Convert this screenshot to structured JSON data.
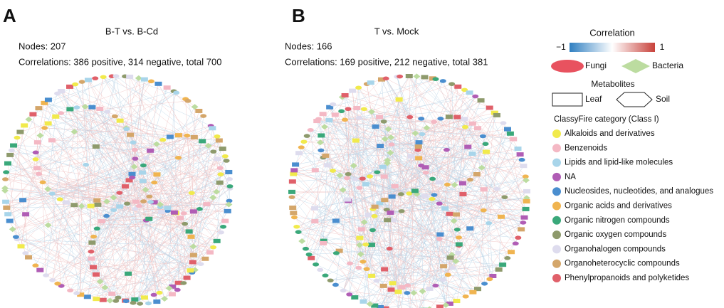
{
  "panels": [
    {
      "label": "A",
      "title": "B-T vs. B-Cd",
      "nodes": "Nodes: 207",
      "correlations": "Correlations: 386 positive, 314 negative, total 700"
    },
    {
      "label": "B",
      "title": "T vs. Mock",
      "nodes": "Nodes: 166",
      "correlations": "Correlations: 169 positive, 212 negative, total 381"
    }
  ],
  "legend": {
    "correlation": {
      "title": "Correlation",
      "min": "−1",
      "max": "1",
      "colors": [
        "#2f7fc1",
        "#ffffff",
        "#c8413a"
      ]
    },
    "node_types": [
      {
        "name": "Fungi",
        "color": "#e8525f"
      },
      {
        "name": "Bacteria",
        "color": "#bcdca0"
      }
    ],
    "metabolites": {
      "title": "Metabolites",
      "items": [
        "Leaf",
        "Soil"
      ]
    },
    "classyfire": {
      "title": "ClassyFire category (Class I)",
      "items": [
        {
          "name": "Alkaloids and derivatives",
          "color": "#f1ea4c"
        },
        {
          "name": "Benzenoids",
          "color": "#f4b8c4"
        },
        {
          "name": "Lipids and lipid-like molecules",
          "color": "#a8d5ea"
        },
        {
          "name": "NA",
          "color": "#b05db5"
        },
        {
          "name": "Nucleosides, nucleotides, and analogues",
          "color": "#4a8ecf"
        },
        {
          "name": "Organic acids and derivatives",
          "color": "#f0b450"
        },
        {
          "name": "Organic nitrogen compounds",
          "color": "#3aa87a"
        },
        {
          "name": "Organic oxygen compounds",
          "color": "#8e9a6c"
        },
        {
          "name": "Organohalogen compounds",
          "color": "#dedcee"
        },
        {
          "name": "Organoheterocyclic compounds",
          "color": "#d4a66a"
        },
        {
          "name": "Phenylpropanoids and polyketides",
          "color": "#e0606a"
        }
      ]
    }
  }
}
